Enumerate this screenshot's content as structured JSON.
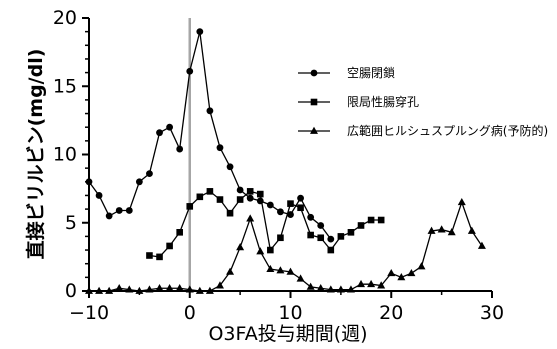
{
  "chart_data": {
    "type": "line",
    "xlabel": "O3FA投与期間(週)",
    "ylabel": "直接ビリルビン(mg/dl)",
    "xlim": [
      -10,
      30
    ],
    "ylim": [
      0,
      20
    ],
    "x_ticks": [
      "−10",
      "0",
      "10",
      "20",
      "30"
    ],
    "y_ticks": [
      "0",
      "5",
      "10",
      "15",
      "20"
    ],
    "reference_line": {
      "x": 0,
      "color": "#a6a6a6"
    },
    "legend_position": "right",
    "series": [
      {
        "name": "空腸閉鎖",
        "marker": "circle",
        "x": [
          -10,
          -9,
          -8,
          -7,
          -6,
          -5,
          -4,
          -3,
          -2,
          -1,
          0,
          1,
          2,
          3,
          4,
          5,
          6,
          7,
          8,
          9,
          10,
          11,
          12,
          13,
          14
        ],
        "y": [
          8.0,
          7.0,
          5.5,
          5.9,
          5.9,
          8.0,
          8.6,
          11.6,
          12.0,
          10.4,
          16.1,
          19.0,
          13.2,
          10.5,
          9.1,
          7.4,
          6.8,
          6.6,
          6.3,
          5.8,
          5.6,
          6.8,
          5.4,
          4.8,
          3.8
        ]
      },
      {
        "name": "限局性腸穿孔",
        "marker": "square",
        "x": [
          -4,
          -3,
          -2,
          -1,
          0,
          1,
          2,
          3,
          4,
          5,
          6,
          7,
          8,
          9,
          10,
          11,
          12,
          13,
          14,
          15,
          16,
          17,
          18,
          19
        ],
        "y": [
          2.6,
          2.5,
          3.3,
          4.3,
          6.2,
          6.9,
          7.3,
          6.7,
          5.7,
          6.7,
          7.3,
          7.1,
          3.0,
          3.9,
          6.4,
          6.1,
          4.1,
          3.9,
          3.0,
          4.0,
          4.3,
          4.8,
          5.2,
          5.2
        ]
      },
      {
        "name": "広範囲ヒルシュスプルング病(予防的)",
        "marker": "triangle",
        "x": [
          -10,
          -9,
          -8,
          -7,
          -6,
          -5,
          -4,
          -3,
          -2,
          -1,
          0,
          1,
          2,
          3,
          4,
          5,
          6,
          7,
          8,
          9,
          10,
          11,
          12,
          13,
          14,
          15,
          16,
          17,
          18,
          19,
          20,
          21,
          22,
          23,
          24,
          25,
          26,
          27,
          28,
          29
        ],
        "y": [
          0,
          0,
          0,
          0.2,
          0.1,
          0,
          0.1,
          0.2,
          0.2,
          0.2,
          0.1,
          0,
          0,
          0.4,
          1.4,
          3.2,
          5.3,
          2.9,
          1.6,
          1.5,
          1.4,
          0.9,
          0.3,
          0.2,
          0.1,
          0.1,
          0.1,
          0.5,
          0.5,
          0.4,
          1.3,
          1.0,
          1.3,
          1.8,
          4.4,
          4.5,
          4.3,
          6.5,
          4.4,
          3.3
        ]
      }
    ]
  }
}
